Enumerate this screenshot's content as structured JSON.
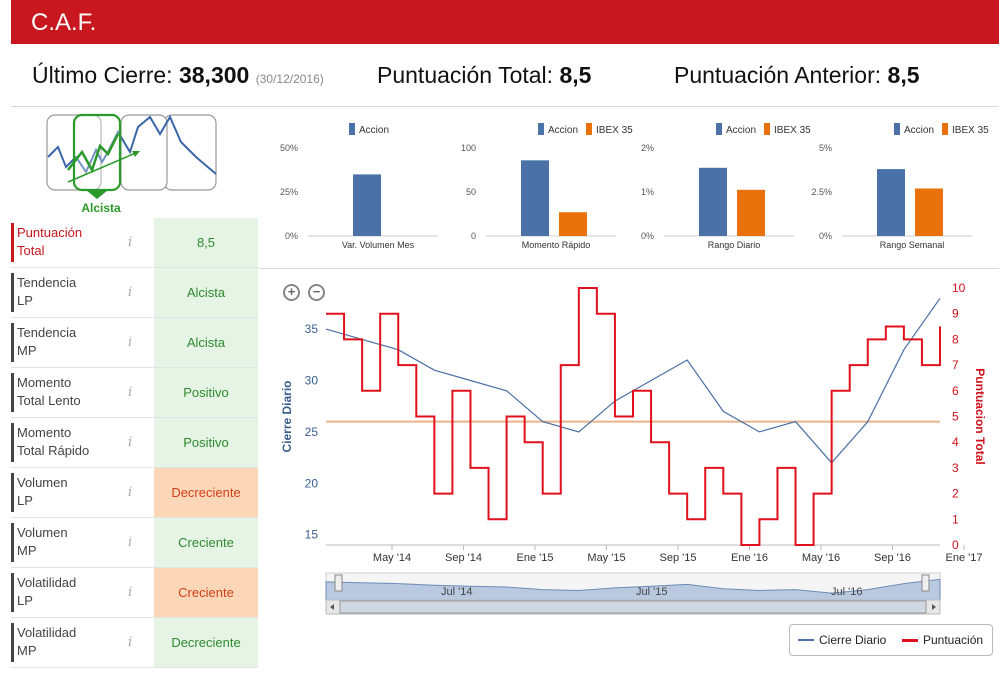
{
  "header": {
    "title": "C.A.F."
  },
  "summary": {
    "last_close_label": "Último Cierre:",
    "last_close_value": "38,300",
    "last_close_date": "(30/12/2016)",
    "total_score_label": "Puntuación Total:",
    "total_score_value": "8,5",
    "prev_score_label": "Puntuación Anterior:",
    "prev_score_value": "8,5"
  },
  "trend": {
    "label": "Alcista"
  },
  "indicators": [
    {
      "label": "Puntuación\nTotal",
      "value": "8,5",
      "status": "green"
    },
    {
      "label": "Tendencia\nLP",
      "value": "Alcista",
      "status": "green"
    },
    {
      "label": "Tendencia\nMP",
      "value": "Alcista",
      "status": "green"
    },
    {
      "label": "Momento\nTotal Lento",
      "value": "Positivo",
      "status": "green"
    },
    {
      "label": "Momento\nTotal Rápido",
      "value": "Positivo",
      "status": "green"
    },
    {
      "label": "Volumen\nLP",
      "value": "Decreciente",
      "status": "orange"
    },
    {
      "label": "Volumen\nMP",
      "value": "Creciente",
      "status": "green"
    },
    {
      "label": "Volatilidad\nLP",
      "value": "Creciente",
      "status": "orange"
    },
    {
      "label": "Volatilidad\nMP",
      "value": "Decreciente",
      "status": "green"
    }
  ],
  "info_icon": "i",
  "colors": {
    "accion": "#4a72a8",
    "ibex": "#e8710a",
    "cierre": "#4a6fa5",
    "puntuacion": "#e0101c",
    "brand": "#c8171e"
  },
  "chart_data": [
    {
      "type": "bar",
      "title": "Var. Volumen Mes",
      "series": [
        {
          "name": "Accion",
          "values": [
            35
          ]
        }
      ],
      "yticks": [
        "0%",
        "25%",
        "50%"
      ],
      "ylim": [
        0,
        50
      ]
    },
    {
      "type": "bar",
      "title": "Momento Rápido",
      "series": [
        {
          "name": "Accion",
          "values": [
            86
          ]
        },
        {
          "name": "IBEX 35",
          "values": [
            27
          ]
        }
      ],
      "yticks": [
        "0",
        "50",
        "100"
      ],
      "ylim": [
        0,
        100
      ]
    },
    {
      "type": "bar",
      "title": "Rango Diario",
      "series": [
        {
          "name": "Accion",
          "values": [
            1.55
          ]
        },
        {
          "name": "IBEX 35",
          "values": [
            1.05
          ]
        }
      ],
      "yticks": [
        "0%",
        "1%",
        "2%"
      ],
      "ylim": [
        0,
        2
      ]
    },
    {
      "type": "bar",
      "title": "Rango Semanal",
      "series": [
        {
          "name": "Accion",
          "values": [
            3.8
          ]
        },
        {
          "name": "IBEX 35",
          "values": [
            2.7
          ]
        }
      ],
      "yticks": [
        "0%",
        "2.5%",
        "5%"
      ],
      "ylim": [
        0,
        5
      ]
    },
    {
      "type": "line",
      "ylabel": "Cierre Diario",
      "y2label": "Puntuacion Total",
      "x_ticks": [
        "May '14",
        "Sep '14",
        "Ene '15",
        "May '15",
        "Sep '15",
        "Ene '16",
        "May '16",
        "Sep '16",
        "Ene '17"
      ],
      "y_ticks": [
        "15",
        "20",
        "25",
        "30",
        "35"
      ],
      "y2_ticks": [
        "0",
        "1",
        "2",
        "3",
        "4",
        "5",
        "6",
        "7",
        "8",
        "9",
        "10"
      ],
      "ylim": [
        14,
        39
      ],
      "y2lim": [
        0,
        10
      ],
      "reference_line_score": 4.8,
      "navigator_labels": [
        "Jul '14",
        "Jul '15",
        "Jul '16"
      ],
      "series": [
        {
          "name": "Cierre Diario",
          "axis": "left",
          "x": [
            0,
            2,
            4,
            6,
            8,
            10,
            12,
            14,
            16,
            18,
            20,
            22,
            24,
            26,
            28,
            30,
            32,
            34
          ],
          "values": [
            35,
            34,
            33,
            31,
            30,
            29,
            26,
            25,
            28,
            30,
            32,
            27,
            25,
            26,
            22,
            26,
            33,
            38
          ]
        },
        {
          "name": "Puntuación",
          "axis": "right",
          "x": [
            0,
            1,
            2,
            3,
            4,
            5,
            6,
            7,
            8,
            9,
            10,
            11,
            12,
            13,
            14,
            15,
            16,
            17,
            18,
            19,
            20,
            21,
            22,
            23,
            24,
            25,
            26,
            27,
            28,
            29,
            30,
            31,
            32,
            33,
            34
          ],
          "values": [
            9,
            8,
            6,
            9,
            7,
            5,
            2,
            6,
            3,
            1,
            5,
            4,
            2,
            7,
            10,
            9,
            5,
            6,
            4,
            2,
            1,
            3,
            2,
            0,
            1,
            3,
            0,
            2,
            6,
            7,
            8,
            8.5,
            8,
            7,
            8.5
          ]
        }
      ],
      "legend": [
        "Cierre Diario",
        "Puntuación"
      ]
    }
  ]
}
